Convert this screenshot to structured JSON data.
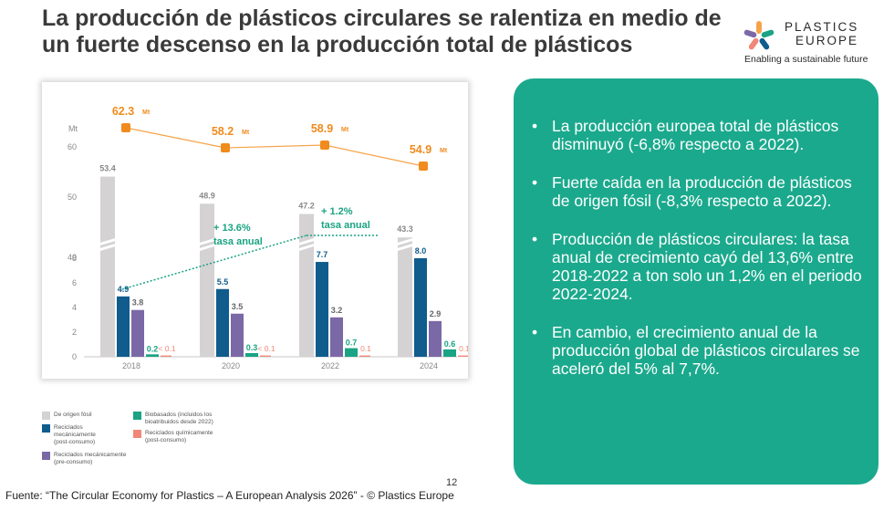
{
  "title": "La producción de plásticos circulares se ralentiza en medio de un fuerte descenso en la producción total de plásticos",
  "logo": {
    "line1": "PLASTICS",
    "line2": "EUROPE",
    "tagline": "Enabling a sustainable future"
  },
  "colors": {
    "fossil": "#d4d2d2",
    "mech_post": "#0f5c8d",
    "mech_pre": "#7b68a6",
    "bio": "#1aa384",
    "chem": "#f08778",
    "total_line": "#f5a34a",
    "total_marker": "#f08b1d",
    "growth": "#1aa384",
    "panel": "#1ba98d"
  },
  "chart_data": {
    "type": "bar",
    "categories": [
      "2018",
      "2020",
      "2022",
      "2024"
    ],
    "unit_label": "Mt",
    "total_production": {
      "values": [
        62.3,
        58.2,
        58.9,
        54.9
      ],
      "labels": [
        "62.3",
        "58.2",
        "58.9",
        "54.9"
      ],
      "unit": "Mt"
    },
    "series": [
      {
        "name": "De origen fósil",
        "values": [
          53.4,
          48.9,
          47.2,
          43.3
        ],
        "labels": [
          "53.4",
          "48.9",
          "47.2",
          "43.3"
        ]
      },
      {
        "name": "Reciclados mecánicamente (post-consumo)",
        "values": [
          4.9,
          5.5,
          7.7,
          8.0
        ],
        "labels": [
          "4.9",
          "5.5",
          "7.7",
          "8.0"
        ]
      },
      {
        "name": "Reciclados mecánicamente (pre-consumo)",
        "values": [
          3.8,
          3.5,
          3.2,
          2.9
        ],
        "labels": [
          "3.8",
          "3.5",
          "3.2",
          "2.9"
        ]
      },
      {
        "name": "Biobasados (incluidos los bioatribuidos desde 2022)",
        "values": [
          0.2,
          0.3,
          0.7,
          0.6
        ],
        "labels": [
          "0.2",
          "0.3",
          "0.7",
          "0.6"
        ]
      },
      {
        "name": "Reciclados químicamente (post-consumo)",
        "values": [
          0.1,
          0.1,
          0.1,
          0.1
        ],
        "labels": [
          "< 0.1",
          "< 0.1",
          "0.1",
          "0.1"
        ]
      }
    ],
    "y_ticks_lower": [
      "0",
      "2",
      "4",
      "6",
      "8"
    ],
    "y_ticks_upper": [
      "40",
      "50"
    ],
    "y_tick_top": "60",
    "annotations": [
      {
        "line1": "+ 13.6%",
        "line2": "tasa anual"
      },
      {
        "line1": "+ 1.2%",
        "line2": "tasa anual"
      }
    ]
  },
  "legend": [
    {
      "key": "fossil",
      "text": "De origen fósil"
    },
    {
      "key": "mech_post",
      "text": "Reciclados\nmecánicamente\n(post-consumo)"
    },
    {
      "key": "mech_pre",
      "text": "Reciclados mecánicamente\n(pre-consumo)"
    },
    {
      "key": "bio",
      "text": "Biobasados (incluidos los\nbioatribuidos desde 2022)"
    },
    {
      "key": "chem",
      "text": "Reciclados químicamente\n(post-consumo)"
    }
  ],
  "bullets": [
    "La producción europea total de plásticos disminuyó (-6,8% respecto a 2022).",
    "Fuerte caída en la producción de plásticos de origen fósil (-8,3% respecto a 2022).",
    "Producción de plásticos circulares: la tasa anual de crecimiento cayó del 13,6% entre 2018-2022 a ton solo un 1,2% en el periodo 2022-2024.",
    "En cambio, el crecimiento anual de la producción global de plásticos circulares se aceleró del 5% al 7,7%."
  ],
  "page_number": "12",
  "source": "Fuente: “The Circular Economy for Plastics – A European Analysis 2026” - © Plastics Europe"
}
